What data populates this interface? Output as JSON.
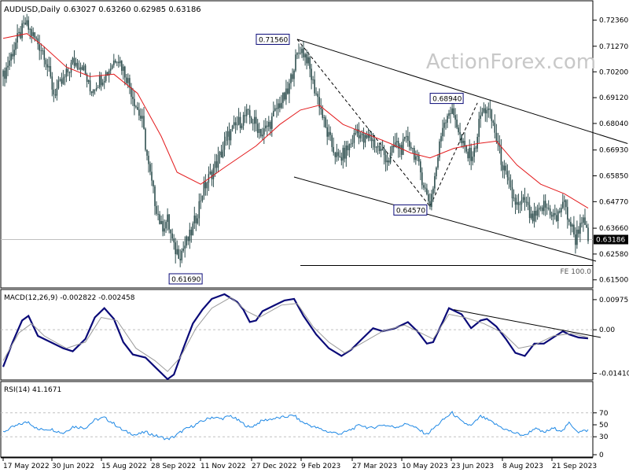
{
  "header": {
    "symbol": "AUDUSD,Daily",
    "ohlc": "0.63027 0.63260 0.62985 0.63186"
  },
  "watermark": "ActionForex.com",
  "colors": {
    "candle": "#2f4f4f",
    "ma": "#e31a1c",
    "macd_line": "#0a0a78",
    "macd_signal": "#9a9a9a",
    "rsi_line": "#1e88e5",
    "axis": "#000000",
    "dashed": "#c0c0c0",
    "label_border": "#0a0a78"
  },
  "chart_data": [
    {
      "type": "candlestick",
      "panel": "price",
      "title": "AUDUSD,Daily",
      "ylim": [
        0.6136,
        0.7294
      ],
      "yticks": [
        "0.72360",
        "0.71270",
        "0.70200",
        "0.69120",
        "0.68040",
        "0.66930",
        "0.65850",
        "0.64770",
        "0.63660",
        "0.62580",
        "0.61500"
      ],
      "x_ticks": [
        "17 May 2022",
        "30 Jun 2022",
        "15 Aug 2022",
        "28 Sep 2022",
        "11 Nov 2022",
        "27 Dec 2022",
        "9 Feb 2023",
        "27 Mar 2023",
        "10 May 2023",
        "23 Jun 2023",
        "8 Aug 2023",
        "21 Sep 2023"
      ],
      "close_path": [
        [
          0,
          0.7
        ],
        [
          8,
          0.714
        ],
        [
          14,
          0.722
        ],
        [
          18,
          0.718
        ],
        [
          26,
          0.71
        ],
        [
          32,
          0.693
        ],
        [
          38,
          0.698
        ],
        [
          44,
          0.706
        ],
        [
          50,
          0.705
        ],
        [
          55,
          0.694
        ],
        [
          60,
          0.698
        ],
        [
          66,
          0.702
        ],
        [
          72,
          0.709
        ],
        [
          78,
          0.7
        ],
        [
          84,
          0.688
        ],
        [
          88,
          0.681
        ],
        [
          92,
          0.662
        ],
        [
          96,
          0.648
        ],
        [
          100,
          0.637
        ],
        [
          104,
          0.64
        ],
        [
          108,
          0.628
        ],
        [
          112,
          0.626
        ],
        [
          118,
          0.633
        ],
        [
          122,
          0.641
        ],
        [
          126,
          0.652
        ],
        [
          132,
          0.66
        ],
        [
          138,
          0.668
        ],
        [
          142,
          0.675
        ],
        [
          148,
          0.68
        ],
        [
          154,
          0.684
        ],
        [
          160,
          0.68
        ],
        [
          164,
          0.676
        ],
        [
          170,
          0.682
        ],
        [
          174,
          0.688
        ],
        [
          180,
          0.693
        ],
        [
          184,
          0.705
        ],
        [
          188,
          0.712
        ],
        [
          192,
          0.708
        ],
        [
          196,
          0.697
        ],
        [
          200,
          0.689
        ],
        [
          204,
          0.678
        ],
        [
          208,
          0.671
        ],
        [
          212,
          0.665
        ],
        [
          216,
          0.668
        ],
        [
          220,
          0.672
        ],
        [
          224,
          0.678
        ],
        [
          228,
          0.673
        ],
        [
          232,
          0.675
        ],
        [
          236,
          0.671
        ],
        [
          240,
          0.668
        ],
        [
          244,
          0.665
        ],
        [
          248,
          0.672
        ],
        [
          252,
          0.67
        ],
        [
          256,
          0.674
        ],
        [
          260,
          0.668
        ],
        [
          264,
          0.66
        ],
        [
          268,
          0.65
        ],
        [
          270,
          0.647
        ],
        [
          274,
          0.662
        ],
        [
          278,
          0.68
        ],
        [
          282,
          0.686
        ],
        [
          286,
          0.683
        ],
        [
          290,
          0.672
        ],
        [
          294,
          0.667
        ],
        [
          298,
          0.668
        ],
        [
          302,
          0.684
        ],
        [
          306,
          0.687
        ],
        [
          310,
          0.68
        ],
        [
          314,
          0.668
        ],
        [
          318,
          0.658
        ],
        [
          322,
          0.65
        ],
        [
          326,
          0.645
        ],
        [
          330,
          0.648
        ],
        [
          334,
          0.64
        ],
        [
          338,
          0.642
        ],
        [
          342,
          0.646
        ],
        [
          346,
          0.644
        ],
        [
          350,
          0.64
        ],
        [
          354,
          0.648
        ],
        [
          358,
          0.64
        ],
        [
          362,
          0.632
        ],
        [
          366,
          0.641
        ],
        [
          370,
          0.6319
        ]
      ],
      "moving_average": [
        [
          0,
          0.716
        ],
        [
          15,
          0.718
        ],
        [
          25,
          0.713
        ],
        [
          40,
          0.704
        ],
        [
          55,
          0.7
        ],
        [
          70,
          0.701
        ],
        [
          85,
          0.693
        ],
        [
          100,
          0.675
        ],
        [
          110,
          0.66
        ],
        [
          125,
          0.655
        ],
        [
          140,
          0.662
        ],
        [
          160,
          0.671
        ],
        [
          175,
          0.68
        ],
        [
          188,
          0.686
        ],
        [
          200,
          0.688
        ],
        [
          215,
          0.68
        ],
        [
          230,
          0.676
        ],
        [
          245,
          0.672
        ],
        [
          258,
          0.668
        ],
        [
          270,
          0.666
        ],
        [
          285,
          0.67
        ],
        [
          300,
          0.672
        ],
        [
          312,
          0.673
        ],
        [
          325,
          0.663
        ],
        [
          340,
          0.655
        ],
        [
          355,
          0.651
        ],
        [
          370,
          0.645
        ]
      ],
      "price_labels": [
        {
          "x": 182,
          "y": 0.7156,
          "text": "0.71560"
        },
        {
          "x": 289,
          "y": 0.6894,
          "text": "0.68940"
        },
        {
          "x": 270,
          "y": 0.6457,
          "text": "0.64570"
        },
        {
          "x": 103,
          "y": 0.6169,
          "text": "0.61690"
        }
      ],
      "current_price": "0.63186",
      "annotations": [
        "FE 100.0"
      ],
      "channel_upper": [
        [
          186,
          0.7156
        ],
        [
          395,
          0.672
        ]
      ],
      "channel_lower": [
        [
          184,
          0.658
        ],
        [
          375,
          0.6228
        ]
      ],
      "fe_level": 0.621
    },
    {
      "type": "line",
      "panel": "macd",
      "title": "MACD(12,26,9) -0.002822 -0.002458",
      "ylim": [
        -0.0155,
        0.011
      ],
      "yticks": [
        "0.009751",
        "0.00",
        "-0.014107"
      ],
      "series": [
        {
          "role": "macd",
          "values": [
            [
              0,
              -0.012
            ],
            [
              6,
              -0.004
            ],
            [
              12,
              0.003
            ],
            [
              16,
              0.0045
            ],
            [
              22,
              -0.002
            ],
            [
              30,
              -0.004
            ],
            [
              38,
              -0.006
            ],
            [
              44,
              -0.007
            ],
            [
              52,
              -0.003
            ],
            [
              58,
              0.004
            ],
            [
              64,
              0.007
            ],
            [
              70,
              0.0035
            ],
            [
              76,
              -0.004
            ],
            [
              82,
              -0.008
            ],
            [
              90,
              -0.009
            ],
            [
              96,
              -0.012
            ],
            [
              104,
              -0.016
            ],
            [
              108,
              -0.0145
            ],
            [
              114,
              -0.006
            ],
            [
              120,
              0.002
            ],
            [
              126,
              0.0065
            ],
            [
              132,
              0.01
            ],
            [
              140,
              0.0115
            ],
            [
              148,
              0.009
            ],
            [
              152,
              0.0065
            ],
            [
              156,
              0.0025
            ],
            [
              160,
              0.003
            ],
            [
              164,
              0.006
            ],
            [
              172,
              0.008
            ],
            [
              178,
              0.0095
            ],
            [
              184,
              0.01
            ],
            [
              190,
              0.0045
            ],
            [
              198,
              -0.0015
            ],
            [
              206,
              -0.006
            ],
            [
              214,
              -0.0085
            ],
            [
              220,
              -0.0065
            ],
            [
              226,
              -0.0035
            ],
            [
              234,
              0.0005
            ],
            [
              240,
              -0.0005
            ],
            [
              248,
              0.0005
            ],
            [
              256,
              0.0025
            ],
            [
              262,
              -0.0005
            ],
            [
              268,
              -0.0045
            ],
            [
              272,
              -0.004
            ],
            [
              278,
              0.0025
            ],
            [
              282,
              0.007
            ],
            [
              290,
              0.005
            ],
            [
              296,
              0.0005
            ],
            [
              302,
              0.003
            ],
            [
              306,
              0.0035
            ],
            [
              312,
              0.001
            ],
            [
              318,
              -0.003
            ],
            [
              324,
              -0.0075
            ],
            [
              330,
              -0.0085
            ],
            [
              336,
              -0.0045
            ],
            [
              342,
              -0.0045
            ],
            [
              348,
              -0.0025
            ],
            [
              354,
              -0.0005
            ],
            [
              358,
              -0.0015
            ],
            [
              364,
              -0.0025
            ],
            [
              370,
              -0.0028
            ]
          ]
        },
        {
          "role": "signal",
          "values": [
            [
              0,
              -0.01
            ],
            [
              10,
              -0.001
            ],
            [
              18,
              0.002
            ],
            [
              26,
              -0.002
            ],
            [
              40,
              -0.006
            ],
            [
              52,
              -0.004
            ],
            [
              62,
              0.004
            ],
            [
              72,
              0.003
            ],
            [
              84,
              -0.006
            ],
            [
              96,
              -0.01
            ],
            [
              104,
              -0.0135
            ],
            [
              112,
              -0.009
            ],
            [
              122,
              0.0005
            ],
            [
              132,
              0.007
            ],
            [
              144,
              0.0105
            ],
            [
              154,
              0.006
            ],
            [
              162,
              0.004
            ],
            [
              176,
              0.008
            ],
            [
              186,
              0.0085
            ],
            [
              196,
              0.001
            ],
            [
              206,
              -0.004
            ],
            [
              216,
              -0.0075
            ],
            [
              228,
              -0.004
            ],
            [
              240,
              -0.0005
            ],
            [
              254,
              0.0015
            ],
            [
              264,
              -0.001
            ],
            [
              272,
              -0.003
            ],
            [
              282,
              0.005
            ],
            [
              292,
              0.004
            ],
            [
              304,
              0.002
            ],
            [
              316,
              -0.001
            ],
            [
              326,
              -0.006
            ],
            [
              336,
              -0.005
            ],
            [
              348,
              -0.002
            ],
            [
              360,
              -0.0012
            ],
            [
              370,
              -0.0025
            ]
          ]
        }
      ],
      "trendline": [
        [
          285,
          0.0065
        ],
        [
          378,
          -0.0025
        ]
      ],
      "zero_line": 0.0
    },
    {
      "type": "line",
      "panel": "rsi",
      "title": "RSI(14) 41.1671",
      "ylim": [
        0,
        100
      ],
      "yticks": [
        "70",
        "50",
        "30",
        "0"
      ],
      "levels": [
        70,
        30
      ],
      "series": [
        {
          "role": "rsi",
          "values": [
            [
              0,
              38
            ],
            [
              6,
              46
            ],
            [
              12,
              52
            ],
            [
              16,
              55
            ],
            [
              22,
              42
            ],
            [
              30,
              43
            ],
            [
              38,
              36
            ],
            [
              44,
              47
            ],
            [
              52,
              45
            ],
            [
              58,
              58
            ],
            [
              64,
              62
            ],
            [
              70,
              52
            ],
            [
              76,
              40
            ],
            [
              84,
              33
            ],
            [
              90,
              38
            ],
            [
              96,
              32
            ],
            [
              104,
              26
            ],
            [
              108,
              30
            ],
            [
              114,
              41
            ],
            [
              120,
              48
            ],
            [
              126,
              56
            ],
            [
              132,
              63
            ],
            [
              138,
              60
            ],
            [
              144,
              65
            ],
            [
              150,
              55
            ],
            [
              156,
              45
            ],
            [
              160,
              51
            ],
            [
              164,
              57
            ],
            [
              170,
              60
            ],
            [
              176,
              62
            ],
            [
              184,
              66
            ],
            [
              188,
              56
            ],
            [
              196,
              47
            ],
            [
              206,
              38
            ],
            [
              214,
              35
            ],
            [
              220,
              42
            ],
            [
              226,
              50
            ],
            [
              232,
              44
            ],
            [
              240,
              50
            ],
            [
              248,
              46
            ],
            [
              256,
              52
            ],
            [
              262,
              43
            ],
            [
              268,
              34
            ],
            [
              274,
              48
            ],
            [
              280,
              62
            ],
            [
              284,
              70
            ],
            [
              290,
              55
            ],
            [
              296,
              48
            ],
            [
              302,
              64
            ],
            [
              306,
              59
            ],
            [
              312,
              50
            ],
            [
              318,
              42
            ],
            [
              324,
              36
            ],
            [
              330,
              32
            ],
            [
              336,
              44
            ],
            [
              342,
              37
            ],
            [
              348,
              44
            ],
            [
              354,
              40
            ],
            [
              358,
              53
            ],
            [
              364,
              38
            ],
            [
              370,
              41
            ]
          ]
        }
      ]
    }
  ]
}
